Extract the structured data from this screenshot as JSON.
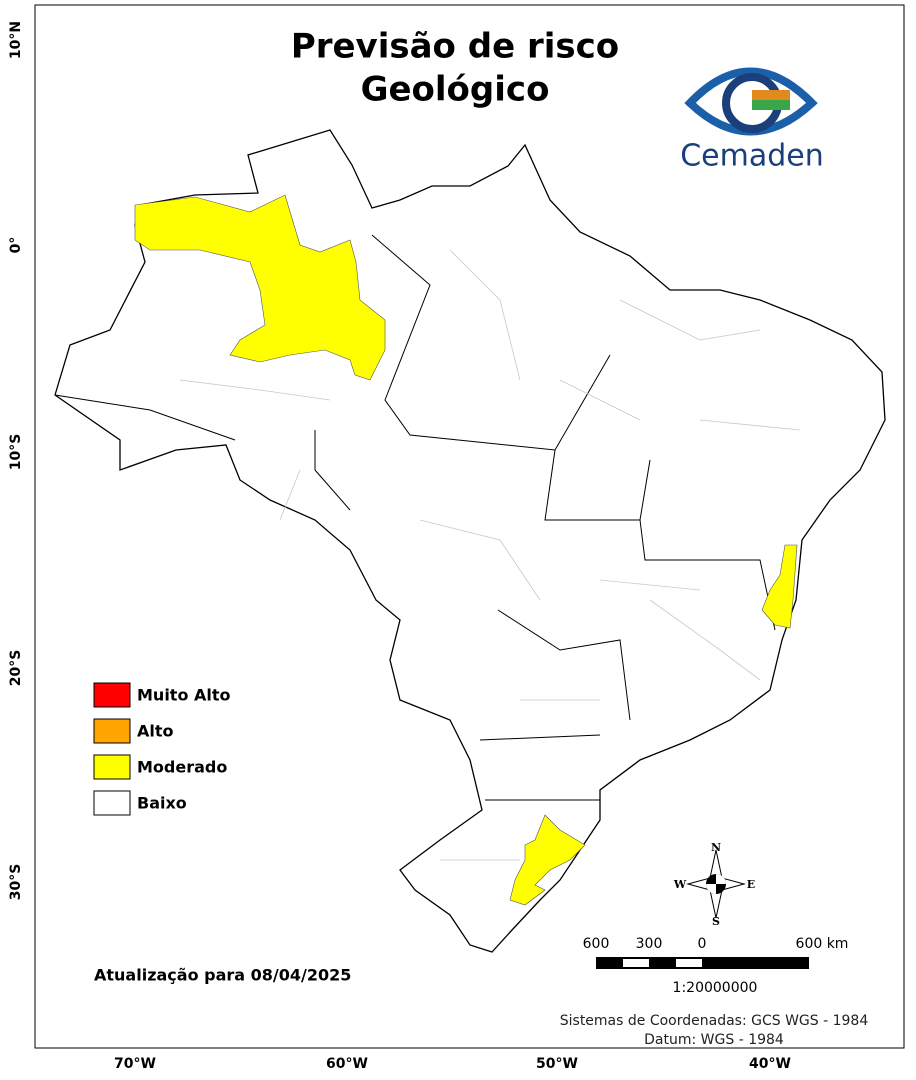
{
  "header": {
    "title_lines": [
      "Previsão de risco",
      "Geológico"
    ],
    "logo_text": "Cemaden"
  },
  "legend": {
    "items": [
      {
        "label": "Muito Alto",
        "color": "#ff0000"
      },
      {
        "label": "Alto",
        "color": "#ffa500"
      },
      {
        "label": "Moderado",
        "color": "#ffff00"
      },
      {
        "label": "Baixo",
        "color": "#ffffff"
      }
    ]
  },
  "update": "Atualização para 08/04/2025",
  "latitude_labels": [
    "10°N",
    "0°",
    "10°S",
    "20°S",
    "30°S"
  ],
  "longitude_labels": [
    "70°W",
    "60°W",
    "50°W",
    "40°W"
  ],
  "compass": {
    "n": "N",
    "s": "S",
    "e": "E",
    "w": "W"
  },
  "scale_bar": {
    "labels": [
      "600",
      "300",
      "0",
      "600 km"
    ],
    "ratio": "1:20000000"
  },
  "credits": [
    "Sistemas de Coordenadas: GCS WGS - 1984",
    "Datum: WGS - 1984"
  ]
}
